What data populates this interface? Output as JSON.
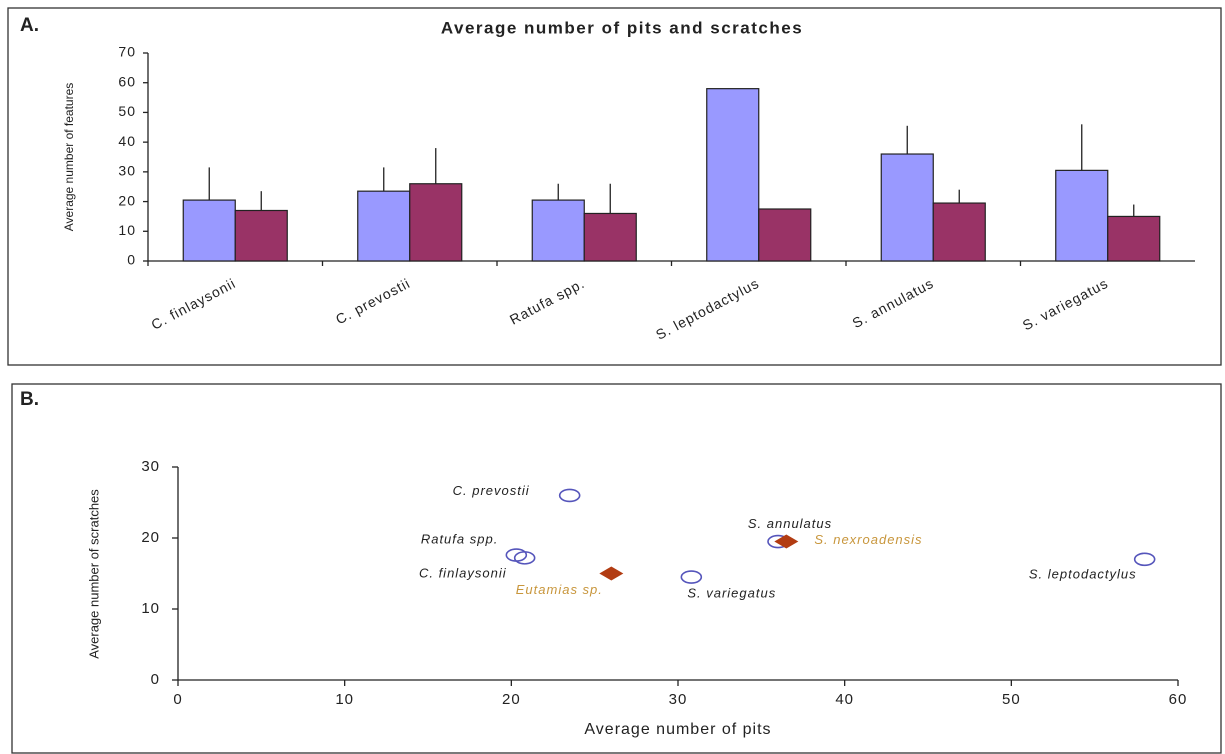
{
  "chart_data": [
    {
      "type": "bar",
      "panel_label": "A.",
      "title": "Average number of pits and scratches",
      "y_label": "Average number of features",
      "categories": [
        "C. finlaysonii",
        "C. prevostii",
        "Ratufa spp.",
        "S. leptodactylus",
        "S. annulatus",
        "S. variegatus"
      ],
      "series": [
        {
          "color": "#9999ff",
          "values": [
            20.5,
            23.5,
            20.5,
            58,
            36,
            30.5
          ],
          "errors": [
            11,
            8,
            5.5,
            null,
            9.5,
            15.5
          ]
        },
        {
          "color": "#993366",
          "values": [
            17,
            26,
            16,
            17.5,
            19.5,
            15
          ],
          "errors": [
            6.5,
            12,
            10,
            null,
            4.5,
            4
          ]
        }
      ],
      "ylim": [
        0,
        70
      ],
      "yticks": [
        0,
        10,
        20,
        30,
        40,
        50,
        60,
        70
      ]
    },
    {
      "type": "scatter",
      "panel_label": "B.",
      "x_label": "Average number of pits",
      "y_label": "Average number of scratches",
      "series": [
        {
          "marker": "circle",
          "color": "#5555bb",
          "label_color": "#222222",
          "labels": [
            "C. finlaysonii",
            "C. prevostii",
            "Ratufa spp.",
            "S. leptodactylus",
            "S. annulatus",
            "S. variegatus"
          ],
          "x": [
            20.8,
            23.5,
            20.3,
            58,
            36,
            30.8
          ],
          "values": [
            17.2,
            26,
            17.6,
            17,
            19.5,
            14.5
          ]
        },
        {
          "marker": "diamond",
          "color": "#b23c12",
          "label_color": "#c8963c",
          "labels": [
            "Eutamias sp.",
            "S. nexroadensis"
          ],
          "x": [
            26,
            36.5
          ],
          "values": [
            15,
            19.5
          ]
        }
      ],
      "xlim": [
        0,
        60
      ],
      "xticks": [
        0,
        10,
        20,
        30,
        40,
        50,
        60
      ],
      "ylim": [
        0,
        30
      ],
      "yticks": [
        0,
        10,
        20,
        30
      ]
    }
  ]
}
